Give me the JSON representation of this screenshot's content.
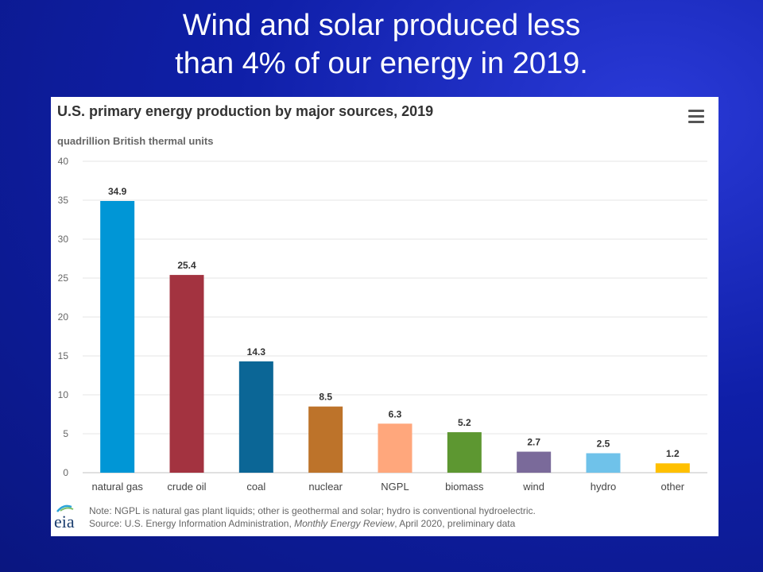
{
  "slide": {
    "title_line1": "Wind and solar produced less",
    "title_line2": "than 4% of our energy in 2019."
  },
  "chart_data": {
    "type": "bar",
    "title": "U.S. primary energy production by major sources, 2019",
    "subtitle": "quadrillion British thermal units",
    "categories": [
      "natural gas",
      "crude oil",
      "coal",
      "nuclear",
      "NGPL",
      "biomass",
      "wind",
      "hydro",
      "other"
    ],
    "values": [
      34.9,
      25.4,
      14.3,
      8.5,
      6.3,
      5.2,
      2.7,
      2.5,
      1.2
    ],
    "value_labels": [
      "34.9",
      "25.4",
      "14.3",
      "8.5",
      "6.3",
      "5.2",
      "2.7",
      "2.5",
      "1.2"
    ],
    "colors": [
      "#0096d6",
      "#a33340",
      "#0b6696",
      "#bd732a",
      "#ffa77c",
      "#5d9731",
      "#7a6a9a",
      "#6fc2ea",
      "#ffc000"
    ],
    "ylim": [
      0,
      40
    ],
    "yticks": [
      0,
      5,
      10,
      15,
      20,
      25,
      30,
      35,
      40
    ],
    "grid": true,
    "note_line1": "Note: NGPL is natural gas plant liquids; other is geothermal and solar; hydro is conventional hydroelectric.",
    "source_prefix": "Source: U.S. Energy Information Administration, ",
    "source_title": "Monthly Energy Review",
    "source_suffix": ", April 2020, preliminary data",
    "logo_text": "eia"
  },
  "icons": {
    "menu": "hamburger-menu-icon",
    "logo": "eia-logo-icon"
  }
}
